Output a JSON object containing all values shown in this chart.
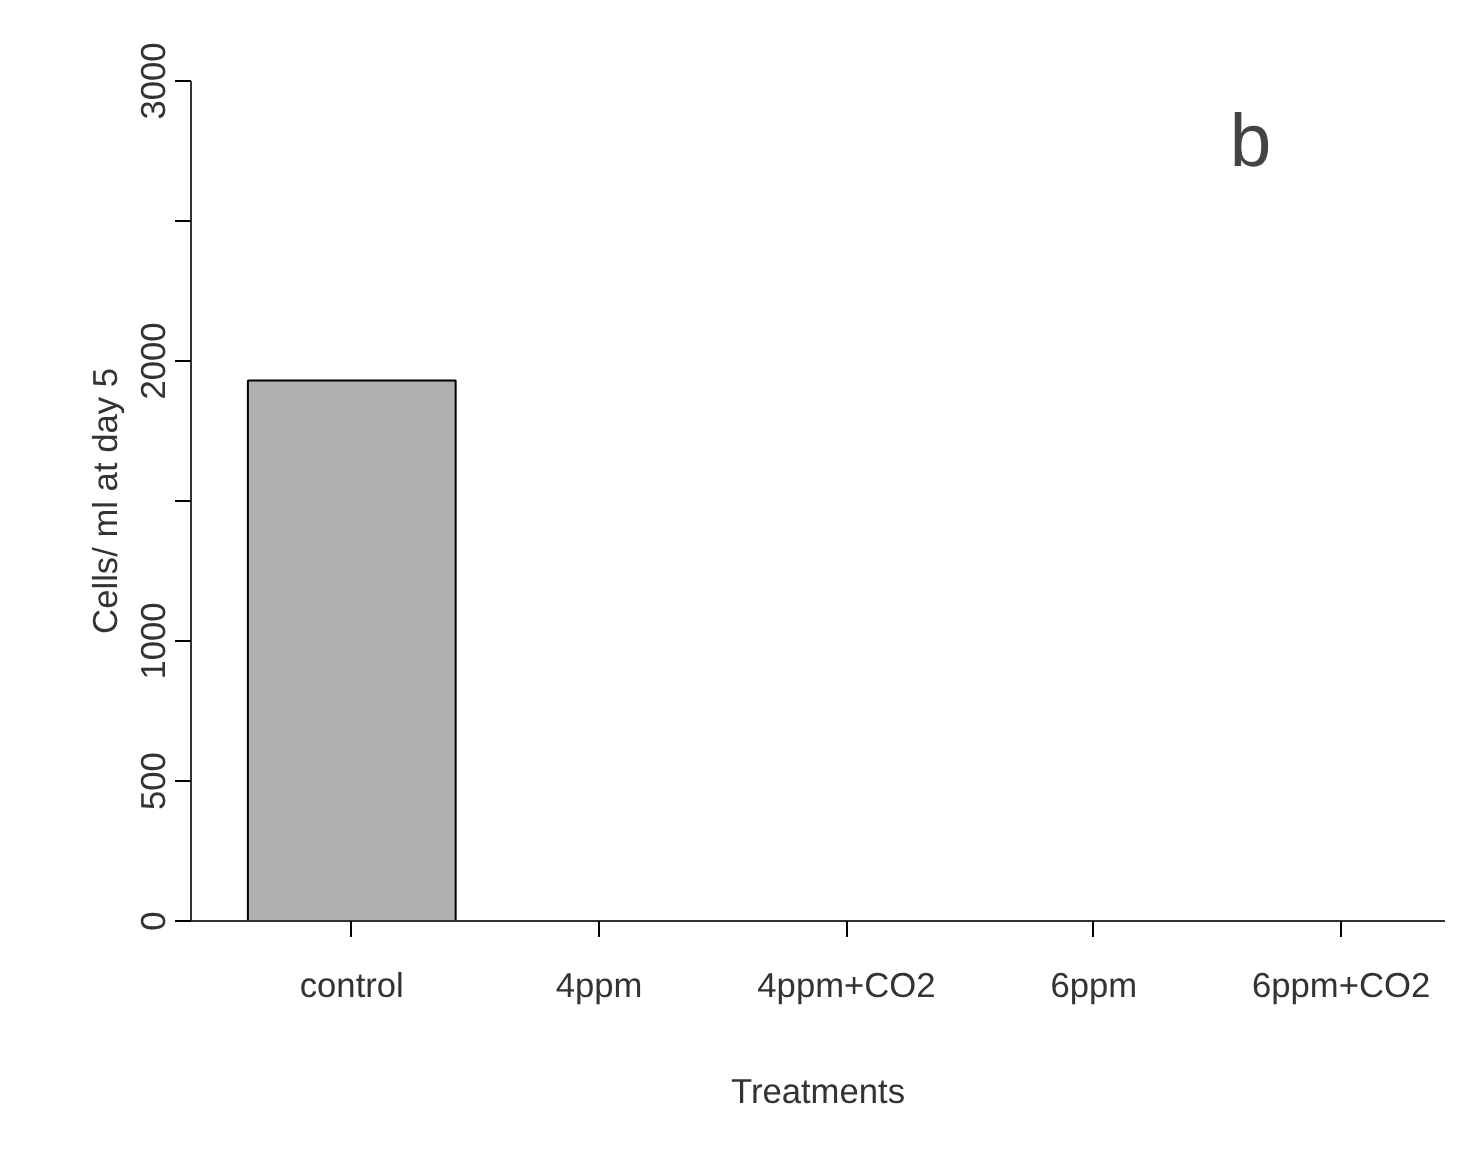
{
  "chart_data": {
    "type": "bar",
    "categories": [
      "control",
      "4ppm",
      "4ppm+CO2",
      "6ppm",
      "6ppm+CO2"
    ],
    "values": [
      1930,
      0,
      0,
      0,
      0
    ],
    "color": "#b0b0b0",
    "xlabel": "Treatments",
    "ylabel": "Cells/ ml at day 5",
    "ylim": [
      0,
      3000
    ],
    "yticks": [
      0,
      500,
      1000,
      {
        "value": 1500,
        "label": null
      },
      2000,
      {
        "value": 2500,
        "label": null
      },
      3000
    ],
    "annotations": [
      "b"
    ],
    "grid": false
  }
}
